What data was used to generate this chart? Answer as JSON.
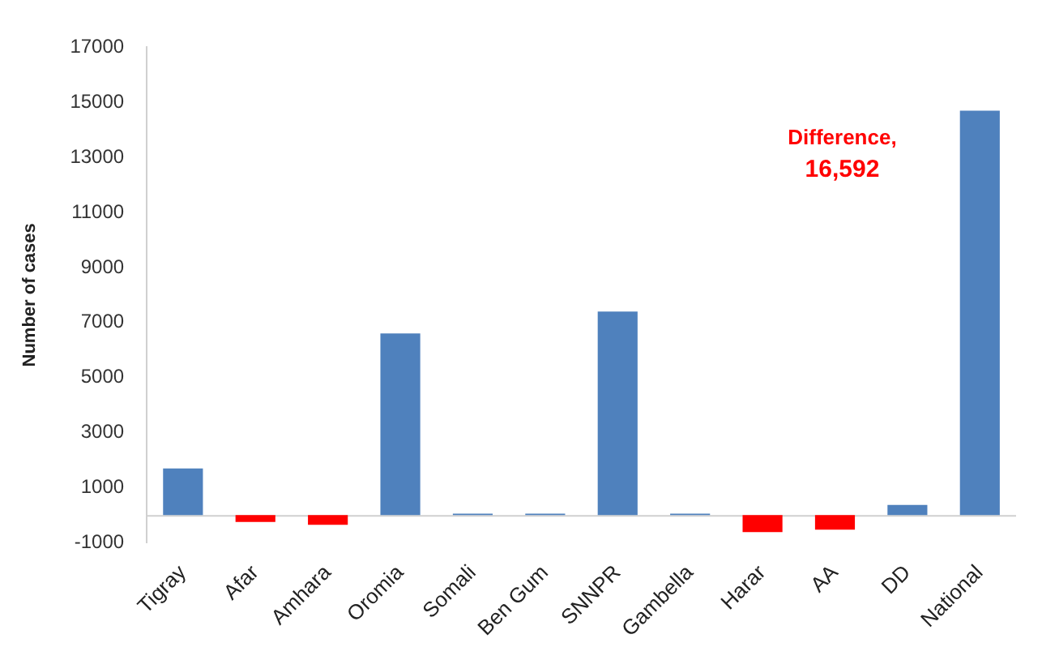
{
  "chart_data": {
    "type": "bar",
    "ylabel": "Number of cases",
    "categories": [
      "Tigray",
      "Afar",
      "Amhara",
      "Oromia",
      "Somali",
      "Ben Gum",
      "SNNPR",
      "Gambella",
      "Harar",
      "AA",
      "DD",
      "National"
    ],
    "values": [
      1700,
      -250,
      -350,
      6600,
      50,
      50,
      7400,
      50,
      -620,
      -530,
      370,
      14700
    ],
    "colors": [
      "#4f81bd",
      "#ff0000",
      "#ff0000",
      "#4f81bd",
      "#4f81bd",
      "#4f81bd",
      "#4f81bd",
      "#4f81bd",
      "#ff0000",
      "#ff0000",
      "#4f81bd",
      "#4f81bd"
    ],
    "ylim": [
      -1000,
      17000
    ],
    "yticks": [
      -1000,
      1000,
      3000,
      5000,
      7000,
      9000,
      11000,
      13000,
      15000,
      17000
    ],
    "grid": false,
    "legend": false,
    "annotations": [
      "Difference, 16,592"
    ]
  }
}
